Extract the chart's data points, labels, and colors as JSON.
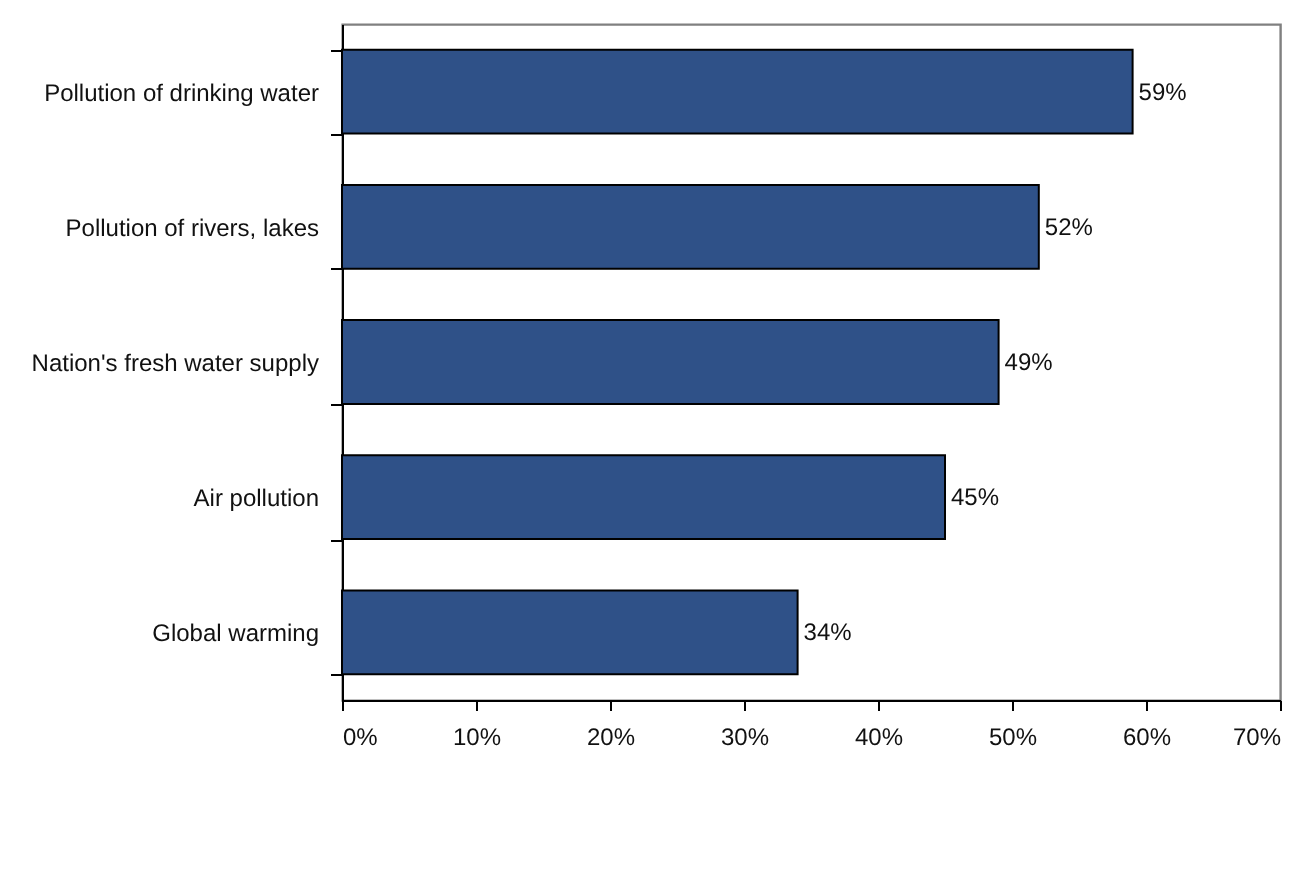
{
  "chart_data": {
    "type": "bar",
    "orientation": "horizontal",
    "categories": [
      "Pollution of drinking water",
      "Pollution of rivers, lakes",
      "Nation's fresh water supply",
      "Air pollution",
      "Global warming"
    ],
    "values": [
      59,
      52,
      49,
      45,
      34
    ],
    "color": "#2f5188",
    "value_labels": [
      "59%",
      "52%",
      "49%",
      "45%",
      "34%"
    ],
    "xlim": [
      0,
      70
    ],
    "xticks": [
      {
        "value": 0,
        "label": "0%"
      },
      {
        "value": 10,
        "label": "10%"
      },
      {
        "value": 20,
        "label": "20%"
      },
      {
        "value": 30,
        "label": "30%"
      },
      {
        "value": 40,
        "label": "40%"
      },
      {
        "value": 50,
        "label": "50%"
      },
      {
        "value": 60,
        "label": "60%"
      },
      {
        "value": 70,
        "label": "70%"
      }
    ]
  }
}
